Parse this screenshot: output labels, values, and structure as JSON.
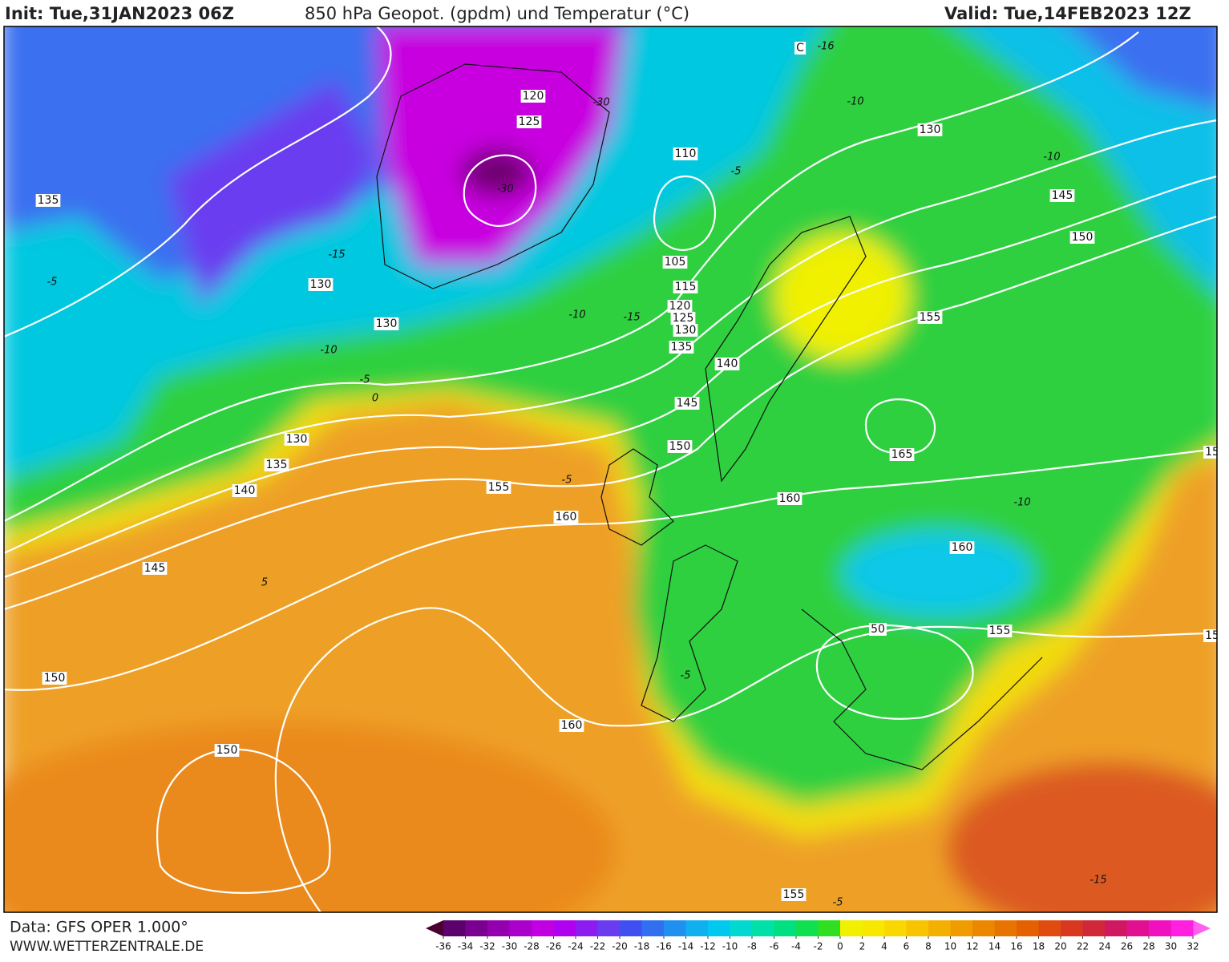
{
  "header": {
    "init": "Init: Tue,31JAN2023 06Z",
    "title": "850 hPa Geopot. (gpdm) und Temperatur (°C)",
    "valid": "Valid: Tue,14FEB2023 12Z"
  },
  "map": {
    "contour_labels": [
      135,
      130,
      130,
      120,
      125,
      110,
      105,
      115,
      120,
      125,
      130,
      135,
      140,
      145,
      150,
      130,
      145,
      150,
      155,
      165,
      160,
      160,
      155,
      130,
      135,
      140,
      155,
      160,
      145,
      150,
      160,
      150,
      155,
      15,
      15,
      50,
      "C"
    ],
    "temperature_labels": [
      "-15",
      "-10",
      "-5",
      "0",
      "-15",
      "-10",
      "-30",
      "-30",
      "-5",
      "-10",
      "-10",
      "-5",
      "-10",
      "-5",
      "5",
      "-5",
      "-15",
      "-5",
      "-16"
    ]
  },
  "footer": {
    "source": "Data: GFS OPER 1.000°",
    "url": "WWW.WETTERZENTRALE.DE"
  },
  "colorbar": {
    "ticks": [
      -36,
      -34,
      -32,
      -30,
      -28,
      -26,
      -24,
      -22,
      -20,
      -18,
      -16,
      -14,
      -12,
      -10,
      -8,
      -6,
      -4,
      -2,
      0,
      2,
      4,
      6,
      8,
      10,
      12,
      14,
      16,
      18,
      20,
      22,
      24,
      26,
      28,
      30,
      32
    ],
    "colors": [
      "#4b0030",
      "#5c006e",
      "#7a0090",
      "#9400b0",
      "#ab00cc",
      "#c000e0",
      "#b000f0",
      "#8c1cf0",
      "#6a3cf0",
      "#4050f0",
      "#3070f0",
      "#2090f0",
      "#10b0f0",
      "#00c8f0",
      "#00d8d0",
      "#00e0a8",
      "#00e080",
      "#10e050",
      "#30e020",
      "#f0f000",
      "#f8e800",
      "#f8d800",
      "#f8c400",
      "#f4b000",
      "#f09c00",
      "#ec8800",
      "#e87400",
      "#e46000",
      "#e04c10",
      "#d83820",
      "#d02838",
      "#d01860",
      "#e01090",
      "#f010c0",
      "#ff20e0",
      "#ff60f0"
    ]
  }
}
